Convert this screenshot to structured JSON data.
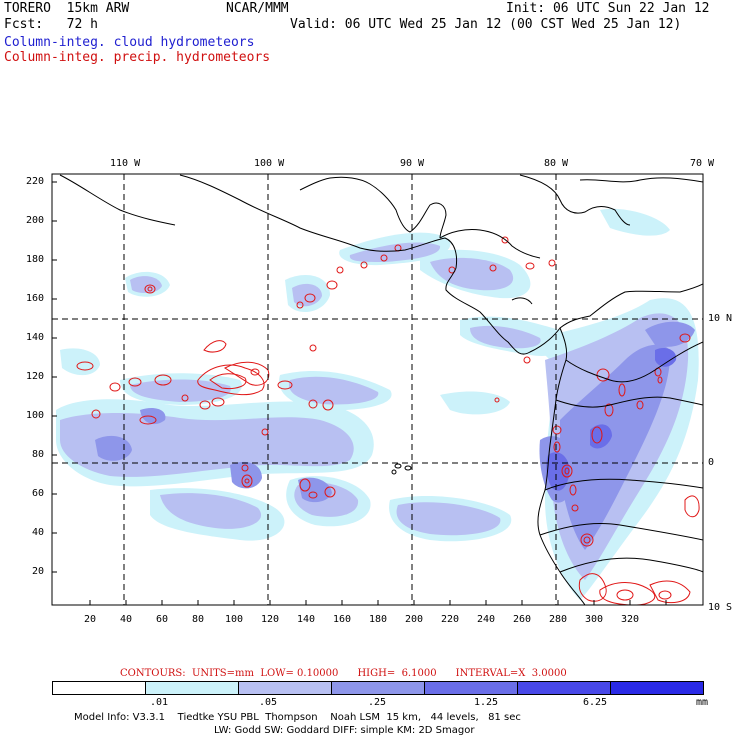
{
  "header": {
    "model": "TORERO  15km ARW",
    "org": "NCAR/MMM",
    "init": "Init: 06 UTC Sun 22 Jan 12",
    "fcst": "Fcst:   72 h",
    "valid": "Valid: 06 UTC Wed 25 Jan 12 (00 CST Wed 25 Jan 12)",
    "legend_cloud": "Column-integ. cloud hydrometeors",
    "legend_precip": "Column-integ. precip. hydrometeors"
  },
  "axes": {
    "top_labels": [
      "110 W",
      "100 W",
      "90 W",
      "80 W",
      "70 W"
    ],
    "right_labels": [
      "10 N",
      "0",
      "10 S"
    ],
    "x_ticks": [
      "20",
      "40",
      "60",
      "80",
      "100",
      "120",
      "140",
      "160",
      "180",
      "200",
      "220",
      "240",
      "260",
      "280",
      "300",
      "320"
    ],
    "y_ticks": [
      "20",
      "40",
      "60",
      "80",
      "100",
      "120",
      "140",
      "160",
      "180",
      "200",
      "220"
    ]
  },
  "contours": {
    "text": "CONTOURS:  UNITS=mm  LOW= 0.10000      HIGH=  6.1000      INTERVAL=X  3.0000"
  },
  "colorbar": {
    "labels": [
      ".01",
      ".05",
      ".25",
      "1.25",
      "6.25"
    ],
    "unit": "mm",
    "colors": [
      "#ffffff",
      "#ccf2fa",
      "#b8c0f2",
      "#8e96ea",
      "#6a6ee8",
      "#4848e8",
      "#2a2ae6"
    ]
  },
  "model_info": {
    "line1": "Model Info: V3.3.1    Tiedtke YSU PBL  Thompson    Noah LSM  15 km,   44 levels,   81 sec",
    "line2": "LW: Godd SW: Goddard DIFF: simple KM: 2D Smagor"
  },
  "map_colors": {
    "cloud_light": "#ccf2fa",
    "cloud_mid": "#b8c0f2",
    "cloud_dark": "#8e96ea",
    "cloud_deep": "#6a6ee8",
    "precip_contour": "#e01818"
  }
}
